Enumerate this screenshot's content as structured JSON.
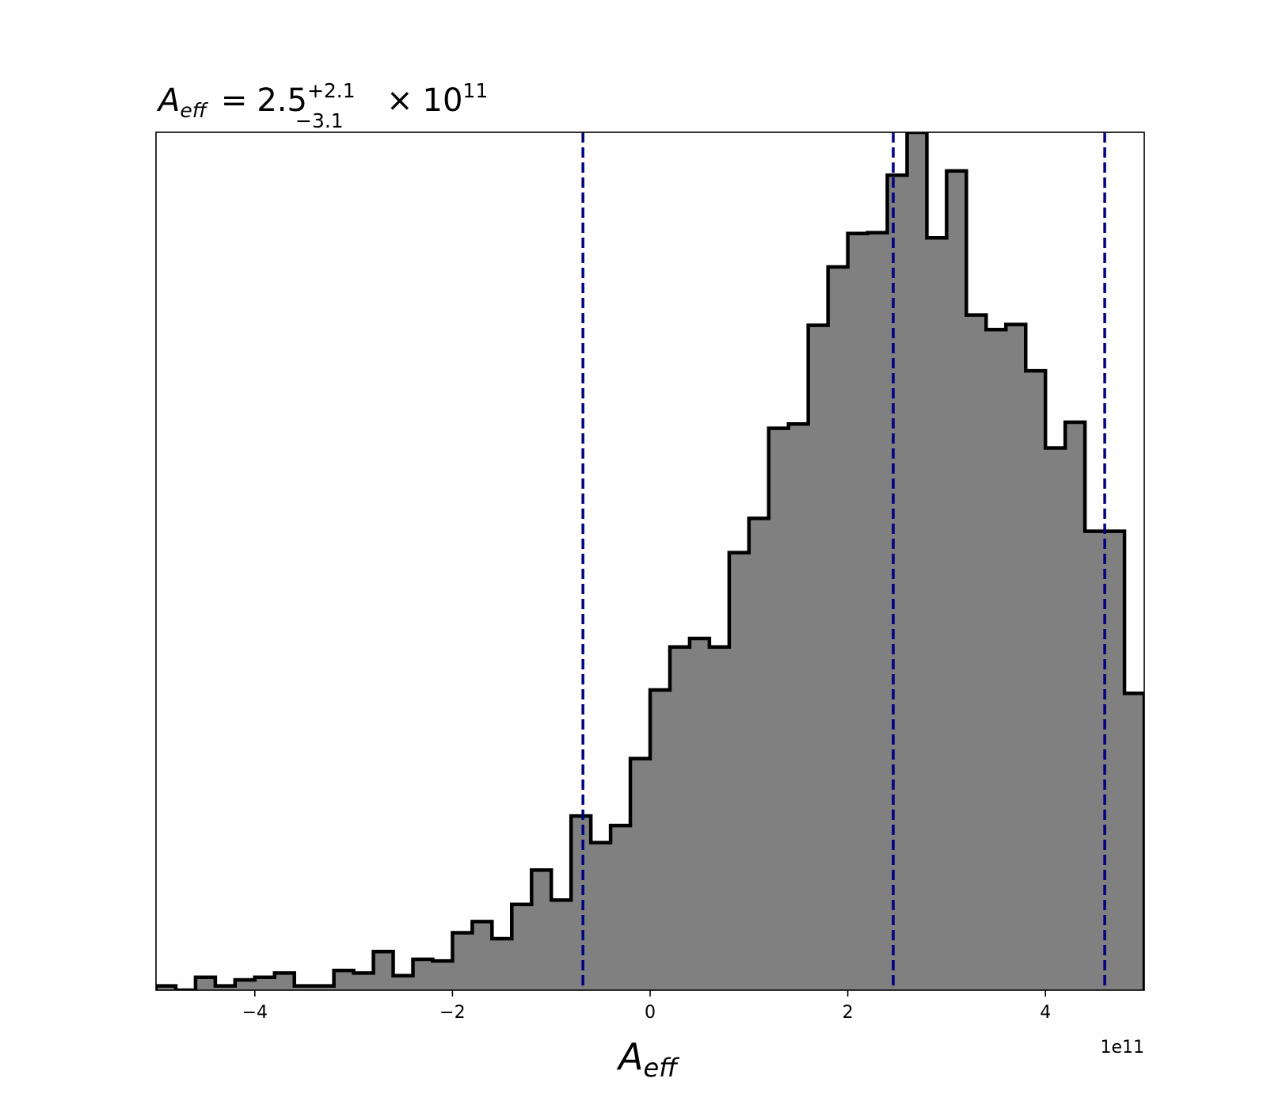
{
  "chart_data": {
    "type": "histogram",
    "title": {
      "var": "A",
      "var_sub": "eff",
      "equals": "=",
      "median": "2.5",
      "err_plus": "+2.1",
      "err_minus": "−3.1",
      "times": "×",
      "exp_base": "10",
      "exp": "11"
    },
    "xlabel": {
      "var": "A",
      "sub": "eff"
    },
    "x_offset_text": "1e11",
    "xlim": [
      -5,
      5
    ],
    "ylim": [
      0,
      1
    ],
    "y_ticks_shown": false,
    "x_ticks": [
      -4,
      -2,
      0,
      2,
      4
    ],
    "x_tick_labels": [
      "−4",
      "−2",
      "0",
      "2",
      "4"
    ],
    "bin_edges": [
      -5.0,
      -4.8,
      -4.6,
      -4.4,
      -4.2,
      -4.0,
      -3.8,
      -3.6,
      -3.4,
      -3.2,
      -3.0,
      -2.8,
      -2.6,
      -2.4,
      -2.2,
      -2.0,
      -1.8,
      -1.6,
      -1.4,
      -1.2,
      -1.0,
      -0.8,
      -0.6,
      -0.4,
      -0.2,
      0.0,
      0.2,
      0.4,
      0.6,
      0.8,
      1.0,
      1.2,
      1.4,
      1.6,
      1.8,
      2.0,
      2.2,
      2.4,
      2.6,
      2.8,
      3.0,
      3.2,
      3.4,
      3.6,
      3.8,
      4.0,
      4.2,
      4.4,
      4.6,
      4.8,
      5.0
    ],
    "counts": [
      0.005,
      0.0,
      0.015,
      0.005,
      0.012,
      0.015,
      0.02,
      0.005,
      0.005,
      0.023,
      0.02,
      0.045,
      0.017,
      0.036,
      0.034,
      0.067,
      0.08,
      0.06,
      0.1,
      0.14,
      0.105,
      0.203,
      0.172,
      0.192,
      0.27,
      0.35,
      0.4,
      0.41,
      0.4,
      0.51,
      0.55,
      0.655,
      0.66,
      0.775,
      0.843,
      0.882,
      0.883,
      0.95,
      1.0,
      0.877,
      0.955,
      0.787,
      0.77,
      0.776,
      0.722,
      0.632,
      0.662,
      0.535,
      0.535,
      0.346
    ],
    "hist_fill_color": "#808080",
    "hist_edge_color": "#000000",
    "vlines": [
      -0.68,
      2.46,
      4.6
    ],
    "vline_color": "#000080",
    "vline_style": "dashed"
  }
}
